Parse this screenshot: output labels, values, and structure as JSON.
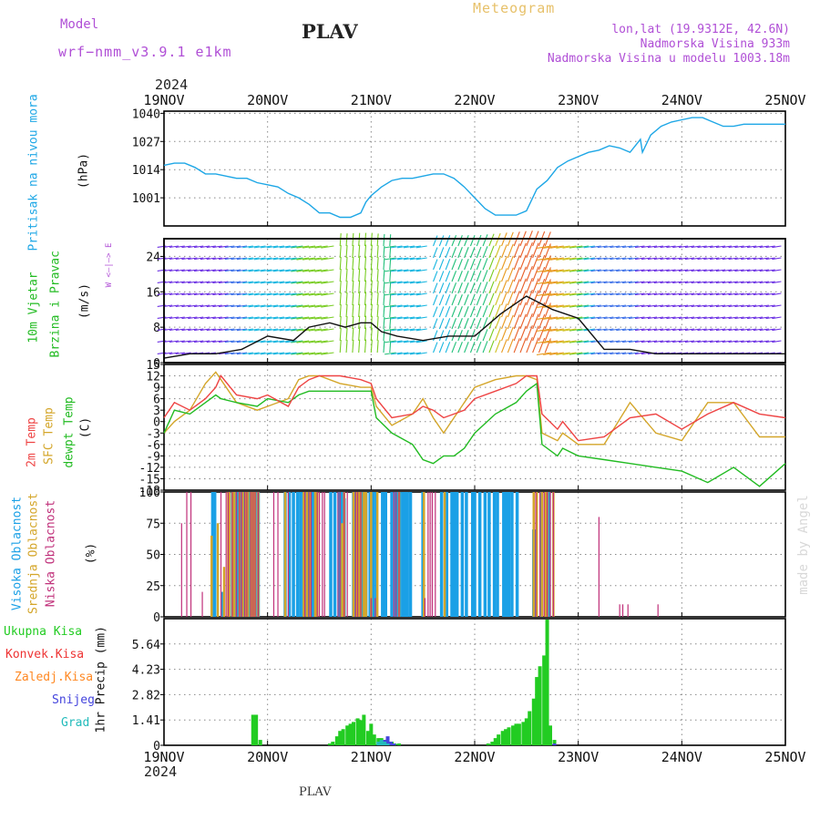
{
  "header": {
    "model_label": "Model",
    "model_name": "wrf−nmm_v3.9.1  e1km",
    "station": "PLAV",
    "product": "Meteogram",
    "lonlat": "lon,lat (19.9312E, 42.6N)",
    "altitude": "Nadmorska Visina 933m",
    "model_altitude": "Nadmorska Visina u modelu 1003.18m",
    "year_top": "2024",
    "year_bottom": "2024",
    "footer_station": "PLAV",
    "watermark": "made by Angel"
  },
  "colors": {
    "pressure": "#1ea7e6",
    "temp2m": "#ee4444",
    "sfc": "#d4a62a",
    "dewpt": "#22bb22",
    "high": "#1aa0e6",
    "mid": "#d4a62a",
    "low": "#c0307a",
    "total": "#22cc22",
    "conv": "#ee3333",
    "frozen": "#ff8822",
    "snow": "#4444dd",
    "hail": "#22bbbb",
    "purple": "#b04fd6"
  },
  "panel_labels": {
    "pressure": {
      "name": "Pritisak na nivou mora",
      "unit": "(hPa)"
    },
    "wind": {
      "name1": "10m Vjetar",
      "name2": "Brzina i Pravac",
      "unit": "(m/s)",
      "compass": "W <–|–> E"
    },
    "temp": {
      "l1": "2m Temp",
      "l2": "SFC Temp",
      "l3": "dewpt Temp",
      "unit": "(C)"
    },
    "cloud": {
      "l1": "Visoka Oblacnost",
      "l2": "Srednja Oblacnost",
      "l3": "Niska Oblacnost",
      "unit": "(%)"
    },
    "precip": {
      "unit": "1hr Precip (mm)",
      "legend": [
        "Ukupna Kisa",
        "Konvek.Kisa",
        "Zaledj.Kisa",
        "Snijeg",
        "Grad"
      ]
    }
  },
  "chart_data": [
    {
      "type": "line",
      "x_ticks": [
        "19NOV",
        "20NOV",
        "21NOV",
        "22NOV",
        "23NOV",
        "24NOV",
        "25NOV"
      ],
      "ylabel": "(hPa)",
      "ylim": [
        988,
        1041
      ],
      "y_ticks": [
        1001,
        1014,
        1027,
        1040
      ],
      "grid": true,
      "series": [
        {
          "name": "Pritisak na nivou mora",
          "x": [
            0,
            0.1,
            0.2,
            0.3,
            0.4,
            0.5,
            0.6,
            0.7,
            0.8,
            0.9,
            1.0,
            1.1,
            1.2,
            1.3,
            1.4,
            1.5,
            1.6,
            1.7,
            1.8,
            1.9,
            1.95,
            2.0,
            2.1,
            2.2,
            2.3,
            2.4,
            2.5,
            2.6,
            2.7,
            2.8,
            2.9,
            3.0,
            3.1,
            3.2,
            3.3,
            3.4,
            3.5,
            3.6,
            3.7,
            3.75,
            3.8,
            3.9,
            4.0,
            4.1,
            4.2,
            4.3,
            4.4,
            4.5,
            4.6,
            4.62,
            4.7,
            4.8,
            4.9,
            5.0,
            5.1,
            5.2,
            5.3,
            5.4,
            5.5,
            5.6,
            5.7,
            5.8,
            5.9,
            6.0
          ],
          "values": [
            1016,
            1017,
            1017,
            1015,
            1012,
            1012,
            1011,
            1010,
            1010,
            1008,
            1007,
            1006,
            1003,
            1001,
            998,
            994,
            994,
            992,
            992,
            994,
            999,
            1002,
            1006,
            1009,
            1010,
            1010,
            1011,
            1012,
            1012,
            1010,
            1006,
            1001,
            996,
            993,
            993,
            993,
            995,
            1005,
            1009,
            1012,
            1015,
            1018,
            1020,
            1022,
            1023,
            1025,
            1024,
            1022,
            1028,
            1022,
            1030,
            1034,
            1036,
            1037,
            1038,
            1038,
            1036,
            1034,
            1034,
            1035,
            1035,
            1035,
            1035,
            1035
          ]
        }
      ]
    },
    {
      "type": "line",
      "x_ticks": [
        "19NOV",
        "20NOV",
        "21NOV",
        "22NOV",
        "23NOV",
        "24NOV",
        "25NOV"
      ],
      "ylabel": "(m/s)",
      "ylim": [
        0,
        28
      ],
      "y_ticks": [
        0,
        8,
        16,
        24
      ],
      "grid": true,
      "series": [
        {
          "name": "10m Vjetar",
          "x": [
            0,
            0.25,
            0.5,
            0.75,
            1.0,
            1.25,
            1.4,
            1.6,
            1.75,
            1.9,
            2.0,
            2.1,
            2.25,
            2.5,
            2.75,
            3.0,
            3.25,
            3.5,
            3.75,
            4.0,
            4.25,
            4.5,
            4.75,
            5.0,
            5.5,
            6.0
          ],
          "values": [
            1,
            2,
            2,
            3,
            6,
            5,
            8,
            9,
            8,
            9,
            9,
            7,
            6,
            5,
            6,
            6,
            11,
            15,
            12,
            10,
            3,
            3,
            2,
            2,
            2,
            2
          ]
        }
      ]
    },
    {
      "type": "line",
      "x_ticks": [
        "19NOV",
        "20NOV",
        "21NOV",
        "22NOV",
        "23NOV",
        "24NOV",
        "25NOV"
      ],
      "ylabel": "(C)",
      "ylim": [
        -18,
        15
      ],
      "y_ticks": [
        -18,
        -15,
        -12,
        -9,
        -6,
        -3,
        0,
        3,
        6,
        9,
        12,
        15
      ],
      "grid": true,
      "series": [
        {
          "name": "2m Temp",
          "x": [
            0,
            0.1,
            0.25,
            0.4,
            0.5,
            0.55,
            0.7,
            0.9,
            1.0,
            1.2,
            1.3,
            1.4,
            1.5,
            1.7,
            1.9,
            2.0,
            2.05,
            2.2,
            2.4,
            2.5,
            2.6,
            2.7,
            2.8,
            2.9,
            3.0,
            3.2,
            3.4,
            3.5,
            3.6,
            3.65,
            3.8,
            3.85,
            4.0,
            4.25,
            4.5,
            4.75,
            5.0,
            5.25,
            5.5,
            5.75,
            6.0
          ],
          "values": [
            1,
            5,
            3,
            6,
            9,
            12,
            7,
            6,
            7,
            4,
            9,
            11,
            12,
            12,
            11,
            10,
            6,
            1,
            2,
            4,
            3,
            1,
            2,
            3,
            6,
            8,
            10,
            12,
            12,
            2,
            -2,
            0,
            -5,
            -4,
            1,
            2,
            -2,
            2,
            5,
            2,
            1
          ]
        },
        {
          "name": "SFC Temp",
          "x": [
            0,
            0.1,
            0.25,
            0.4,
            0.5,
            0.55,
            0.7,
            0.9,
            1.0,
            1.2,
            1.3,
            1.4,
            1.5,
            1.7,
            1.9,
            2.0,
            2.05,
            2.2,
            2.4,
            2.5,
            2.6,
            2.7,
            2.8,
            2.9,
            3.0,
            3.2,
            3.4,
            3.5,
            3.6,
            3.65,
            3.8,
            3.85,
            4.0,
            4.25,
            4.5,
            4.75,
            5.0,
            5.25,
            5.5,
            5.75,
            6.0
          ],
          "values": [
            -3,
            0,
            3,
            10,
            13,
            11,
            5,
            3,
            4,
            6,
            11,
            12,
            12,
            10,
            9,
            9,
            4,
            -1,
            2,
            6,
            1,
            -3,
            1,
            5,
            9,
            11,
            12,
            12,
            11,
            -3,
            -5,
            -3,
            -6,
            -6,
            5,
            -3,
            -5,
            5,
            5,
            -4,
            -4
          ]
        },
        {
          "name": "dewpt Temp",
          "x": [
            0,
            0.1,
            0.25,
            0.4,
            0.5,
            0.55,
            0.7,
            0.9,
            1.0,
            1.2,
            1.3,
            1.4,
            1.5,
            1.7,
            1.9,
            2.0,
            2.05,
            2.2,
            2.4,
            2.5,
            2.6,
            2.7,
            2.8,
            2.9,
            3.0,
            3.2,
            3.4,
            3.5,
            3.6,
            3.65,
            3.8,
            3.85,
            4.0,
            4.25,
            4.5,
            4.75,
            5.0,
            5.25,
            5.5,
            5.75,
            6.0
          ],
          "values": [
            -3,
            3,
            2,
            5,
            7,
            6,
            5,
            4,
            6,
            5,
            7,
            8,
            8,
            8,
            8,
            8,
            1,
            -3,
            -6,
            -10,
            -11,
            -9,
            -9,
            -7,
            -3,
            2,
            5,
            8,
            10,
            -6,
            -9,
            -7,
            -9,
            -10,
            -11,
            -12,
            -13,
            -16,
            -12,
            -17,
            -11
          ]
        }
      ]
    },
    {
      "type": "bar",
      "x_ticks": [
        "19NOV",
        "20NOV",
        "21NOV",
        "22NOV",
        "23NOV",
        "24NOV",
        "25NOV"
      ],
      "ylabel": "(%)",
      "ylim": [
        0,
        100
      ],
      "y_ticks": [
        0,
        25,
        50,
        75,
        100
      ],
      "grid": true,
      "series": [
        {
          "name": "Visoka Oblacnost",
          "x": [
            0.47,
            0.48,
            0.49,
            0.57,
            0.66,
            0.69,
            0.7,
            0.71,
            0.72,
            0.74,
            0.76,
            0.78,
            0.8,
            0.81,
            0.82,
            0.84,
            0.86,
            0.87,
            0.88,
            0.91,
            1.17,
            1.21,
            1.25,
            1.29,
            1.32,
            1.35,
            1.38,
            1.41,
            1.44,
            1.47,
            1.61,
            1.65,
            1.69,
            1.72,
            1.73,
            1.74,
            1.83,
            1.85,
            1.86,
            1.9,
            1.92,
            1.95,
            1.99,
            2.02,
            2.05,
            2.11,
            2.14,
            2.2,
            2.24,
            2.26,
            2.28,
            2.31,
            2.33,
            2.35,
            2.38,
            2.5,
            2.68,
            2.73,
            2.78,
            2.8,
            2.83,
            2.88,
            2.92,
            2.98,
            3.0,
            3.05,
            3.1,
            3.14,
            3.19,
            3.22,
            3.28,
            3.31,
            3.33,
            3.36,
            3.41,
            3.57,
            3.64,
            3.7,
            3.72
          ],
          "values": [
            100,
            100,
            100,
            20,
            100,
            100,
            100,
            100,
            100,
            100,
            100,
            100,
            100,
            100,
            100,
            100,
            100,
            100,
            100,
            100,
            100,
            100,
            100,
            100,
            100,
            100,
            100,
            100,
            100,
            100,
            100,
            100,
            100,
            100,
            100,
            95,
            100,
            100,
            90,
            100,
            100,
            100,
            100,
            100,
            100,
            100,
            100,
            100,
            100,
            100,
            100,
            100,
            100,
            100,
            100,
            100,
            100,
            100,
            100,
            100,
            100,
            100,
            100,
            100,
            100,
            100,
            100,
            100,
            100,
            100,
            100,
            100,
            100,
            100,
            100,
            70,
            100,
            100,
            100
          ]
        },
        {
          "name": "Srednja Oblacnost",
          "x": [
            0.46,
            0.52,
            0.58,
            0.62,
            0.63,
            0.66,
            0.68,
            0.73,
            0.76,
            0.79,
            0.81,
            0.84,
            0.86,
            0.87,
            0.88,
            0.91,
            1.17,
            1.35,
            1.38,
            1.41,
            1.46,
            1.48,
            1.72,
            1.74,
            1.83,
            1.86,
            1.88,
            1.9,
            1.93,
            1.95,
            2.0,
            2.06,
            2.27,
            2.51,
            2.71,
            3.57,
            3.6,
            3.65,
            3.68,
            3.7,
            3.76
          ],
          "values": [
            65,
            75,
            40,
            100,
            100,
            100,
            100,
            100,
            100,
            100,
            100,
            100,
            100,
            100,
            100,
            100,
            100,
            100,
            100,
            100,
            100,
            100,
            75,
            100,
            100,
            100,
            100,
            100,
            100,
            100,
            100,
            100,
            100,
            100,
            100,
            100,
            100,
            100,
            100,
            100,
            100
          ]
        },
        {
          "name": "Niska Oblacnost",
          "x": [
            0.17,
            0.22,
            0.26,
            0.37,
            0.55,
            0.6,
            0.62,
            0.66,
            0.7,
            0.73,
            0.75,
            0.78,
            0.8,
            0.84,
            0.86,
            0.88,
            0.91,
            1.06,
            1.1,
            1.2,
            1.36,
            1.4,
            1.42,
            1.48,
            1.5,
            1.53,
            1.55,
            1.68,
            1.7,
            1.74,
            1.77,
            1.85,
            1.87,
            1.9,
            2.0,
            2.04,
            2.22,
            2.24,
            2.27,
            2.52,
            2.55,
            2.57,
            2.59,
            2.62,
            3.59,
            3.63,
            3.67,
            3.7,
            3.73,
            3.76,
            4.2,
            4.4,
            4.43,
            4.48,
            4.77
          ],
          "values": [
            75,
            100,
            100,
            20,
            100,
            100,
            100,
            100,
            100,
            100,
            100,
            100,
            100,
            100,
            100,
            100,
            100,
            100,
            100,
            100,
            100,
            100,
            100,
            100,
            100,
            100,
            100,
            100,
            100,
            100,
            100,
            100,
            100,
            100,
            15,
            15,
            100,
            100,
            100,
            15,
            100,
            100,
            100,
            100,
            100,
            100,
            100,
            100,
            100,
            100,
            80,
            10,
            10,
            10,
            10
          ]
        }
      ]
    },
    {
      "type": "bar",
      "x_ticks": [
        "19NOV",
        "20NOV",
        "21NOV",
        "22NOV",
        "23NOV",
        "24NOV",
        "25NOV"
      ],
      "ylabel": "1hr Precip (mm)",
      "ylim": [
        0,
        7.05
      ],
      "y_ticks": [
        0,
        1.41,
        2.82,
        4.23,
        5.64
      ],
      "grid": true,
      "series": [
        {
          "name": "Ukupna Kisa",
          "x": [
            0.86,
            0.89,
            0.93,
            1.6,
            1.63,
            1.67,
            1.7,
            1.73,
            1.77,
            1.8,
            1.83,
            1.87,
            1.9,
            1.93,
            1.97,
            2.0,
            2.03,
            2.07,
            2.1,
            2.13,
            2.17,
            2.2,
            2.23,
            2.27,
            3.13,
            3.17,
            3.2,
            3.23,
            3.27,
            3.3,
            3.33,
            3.37,
            3.4,
            3.43,
            3.47,
            3.5,
            3.53,
            3.57,
            3.6,
            3.63,
            3.67,
            3.7,
            3.73,
            3.77
          ],
          "values": [
            1.7,
            1.7,
            0.3,
            0.1,
            0.2,
            0.5,
            0.8,
            0.9,
            1.1,
            1.2,
            1.3,
            1.5,
            1.4,
            1.7,
            0.8,
            1.2,
            0.6,
            0.4,
            0.4,
            0.3,
            0.2,
            0.2,
            0.1,
            0.1,
            0.1,
            0.2,
            0.4,
            0.6,
            0.8,
            0.9,
            1.0,
            1.1,
            1.2,
            1.2,
            1.3,
            1.5,
            1.9,
            2.6,
            3.8,
            4.4,
            5.0,
            7.0,
            1.1,
            0.3
          ]
        },
        {
          "name": "Snijeg",
          "x": [
            2.1,
            2.13,
            2.16,
            2.19,
            2.22,
            3.77
          ],
          "values": [
            0.1,
            0.3,
            0.5,
            0.2,
            0.1,
            0.1
          ]
        },
        {
          "name": "Grad",
          "x": [
            2.07,
            2.1,
            2.13,
            2.16
          ],
          "values": [
            0.2,
            0.3,
            0.2,
            0.1
          ]
        }
      ]
    }
  ]
}
